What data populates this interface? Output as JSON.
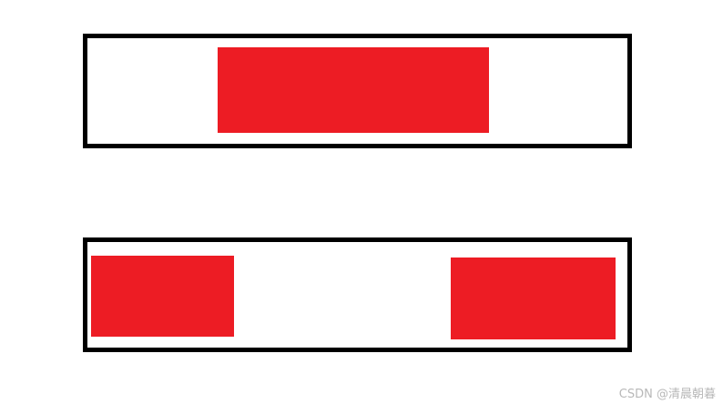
{
  "colors": {
    "border": "#000000",
    "fill": "#ed1c24"
  },
  "diagram": {
    "top_container": {
      "blocks": 1,
      "alignment": "center"
    },
    "bottom_container": {
      "blocks": 2,
      "alignment": "space-between"
    }
  },
  "watermark": "CSDN @清晨朝暮"
}
